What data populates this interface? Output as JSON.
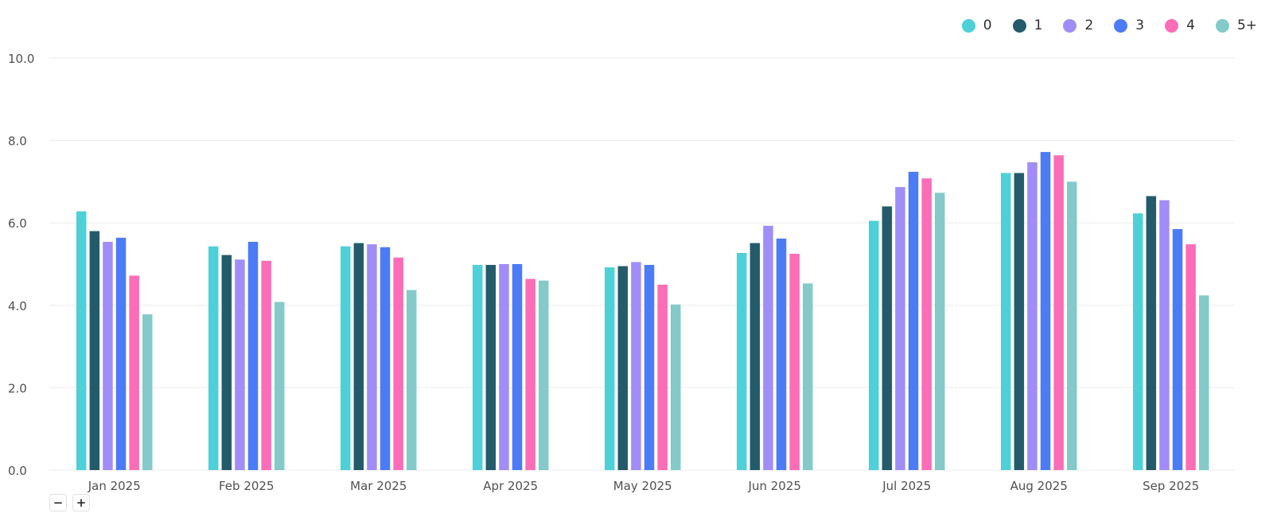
{
  "legend": {
    "items": [
      {
        "label": "0",
        "color": "#4DD0D8"
      },
      {
        "label": "1",
        "color": "#245B6B"
      },
      {
        "label": "2",
        "color": "#A18DF7"
      },
      {
        "label": "3",
        "color": "#4C7BF6"
      },
      {
        "label": "4",
        "color": "#FB6DB6"
      },
      {
        "label": "5+",
        "color": "#84CACA"
      }
    ]
  },
  "controls": {
    "zoom_out_label": "−",
    "zoom_in_label": "+"
  },
  "chart_data": {
    "type": "bar",
    "categories": [
      "Jan 2025",
      "Feb 2025",
      "Mar 2025",
      "Apr 2025",
      "May 2025",
      "Jun 2025",
      "Jul 2025",
      "Aug 2025",
      "Sep 2025"
    ],
    "series": [
      {
        "name": "0",
        "color": "#4DD0D8",
        "values": [
          6.28,
          5.43,
          5.43,
          4.98,
          4.92,
          5.27,
          6.05,
          7.21,
          6.23
        ]
      },
      {
        "name": "1",
        "color": "#245B6B",
        "values": [
          5.8,
          5.22,
          5.51,
          4.98,
          4.95,
          5.51,
          6.4,
          7.21,
          6.65
        ]
      },
      {
        "name": "2",
        "color": "#A18DF7",
        "values": [
          5.54,
          5.11,
          5.48,
          5.0,
          5.05,
          5.93,
          6.87,
          7.47,
          6.55
        ]
      },
      {
        "name": "3",
        "color": "#4C7BF6",
        "values": [
          5.64,
          5.54,
          5.41,
          5.0,
          4.98,
          5.62,
          7.24,
          7.72,
          5.85
        ]
      },
      {
        "name": "4",
        "color": "#FB6DB6",
        "values": [
          4.72,
          5.08,
          5.16,
          4.64,
          4.5,
          5.25,
          7.08,
          7.64,
          5.48
        ]
      },
      {
        "name": "5+",
        "color": "#84CACA",
        "values": [
          3.78,
          4.08,
          4.37,
          4.6,
          4.02,
          4.53,
          6.73,
          7.0,
          4.24
        ]
      }
    ],
    "yticks": [
      "0.0",
      "2.0",
      "4.0",
      "6.0",
      "8.0",
      "10.0"
    ],
    "ylim": [
      0,
      10
    ],
    "grid": true,
    "legend_position": "top-right"
  }
}
